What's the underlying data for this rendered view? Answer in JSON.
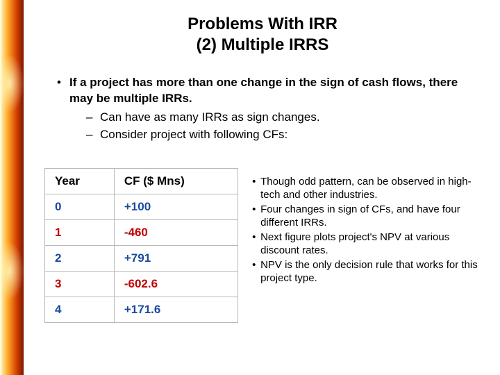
{
  "title_line1": "Problems With IRR",
  "title_line2": "(2) Multiple IRRS",
  "main_bullet": "If a project has more than one change in the sign of cash flows, there may be multiple IRRs.",
  "sub_bullets": [
    "Can have as many IRRs as sign changes.",
    "Consider project with following CFs:"
  ],
  "table": {
    "headers": [
      "Year",
      "CF ($ Mns)"
    ],
    "rows": [
      {
        "year": "0",
        "cf": "+100",
        "year_color": "#1a4aa0",
        "cf_color": "#1a4aa0"
      },
      {
        "year": "1",
        "cf": "-460",
        "year_color": "#c00000",
        "cf_color": "#c00000"
      },
      {
        "year": "2",
        "cf": "+791",
        "year_color": "#1a4aa0",
        "cf_color": "#1a4aa0"
      },
      {
        "year": "3",
        "cf": "-602.6",
        "year_color": "#c00000",
        "cf_color": "#c00000"
      },
      {
        "year": "4",
        "cf": "+171.6",
        "year_color": "#1a4aa0",
        "cf_color": "#1a4aa0"
      }
    ]
  },
  "side_notes": [
    "Though odd pattern, can be observed in high-tech and other industries.",
    "Four changes in sign of CFs, and have four different IRRs.",
    "Next figure plots project's NPV  at various discount rates.",
    "NPV is the only decision rule that works for this project type."
  ],
  "colors": {
    "text": "#000000",
    "table_border": "#b8b8b8"
  }
}
